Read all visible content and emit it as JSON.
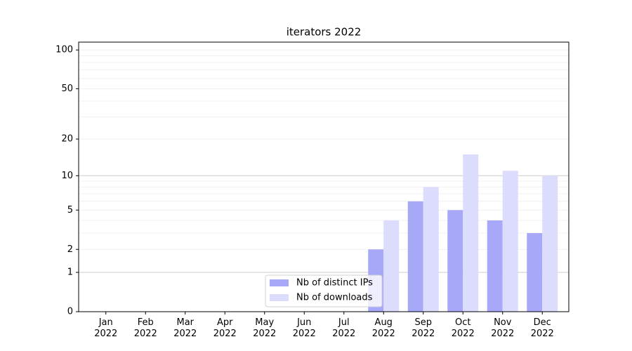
{
  "chart_data": {
    "type": "bar",
    "title": "iterators 2022",
    "categories": [
      "Jan 2022",
      "Feb 2022",
      "Mar 2022",
      "Apr 2022",
      "May 2022",
      "Jun 2022",
      "Jul 2022",
      "Aug 2022",
      "Sep 2022",
      "Oct 2022",
      "Nov 2022",
      "Dec 2022"
    ],
    "series": [
      {
        "name": "Nb of distinct IPs",
        "color": "#a8a8f8",
        "values": [
          0,
          0,
          0,
          0,
          0,
          0,
          0,
          2,
          6,
          5,
          4,
          3
        ]
      },
      {
        "name": "Nb of downloads",
        "color": "#dcdcfc",
        "values": [
          0,
          0,
          0,
          0,
          0,
          0,
          0,
          4,
          8,
          15,
          11,
          10
        ]
      }
    ],
    "yscale": "log1p",
    "ylim": [
      0,
      115
    ],
    "yticks": [
      0,
      1,
      2,
      5,
      10,
      20,
      50,
      100
    ],
    "major_grid": [
      1,
      10
    ],
    "minor_grid": [
      2,
      3,
      4,
      5,
      6,
      7,
      8,
      9,
      20,
      30,
      40,
      50,
      60,
      70,
      80,
      90,
      100
    ],
    "grid": true,
    "legend": "lower center"
  }
}
